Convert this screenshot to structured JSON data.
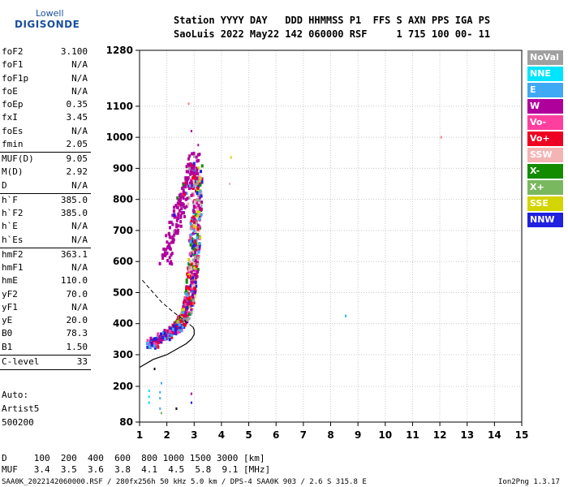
{
  "logo": {
    "top": "Lowell",
    "bottom": "DIGISONDE"
  },
  "header": {
    "line1": "Station YYYY DAY   DDD HHMMSS P1  FFS S AXN PPS IGA PS",
    "line2": "SaoLuis 2022 May22 142 060000 RSF     1 715 100 00- 11"
  },
  "params": [
    {
      "k": "foF2",
      "v": "3.100"
    },
    {
      "k": "foF1",
      "v": "N/A"
    },
    {
      "k": "foF1p",
      "v": "N/A"
    },
    {
      "k": "foE",
      "v": "N/A"
    },
    {
      "k": "foEp",
      "v": "0.35"
    },
    {
      "k": "fxI",
      "v": "3.45"
    },
    {
      "k": "foEs",
      "v": "N/A"
    },
    {
      "k": "fmin",
      "v": "2.05"
    },
    {
      "sep": true
    },
    {
      "k": "MUF(D)",
      "v": "9.05"
    },
    {
      "k": "M(D)",
      "v": "2.92"
    },
    {
      "k": "D",
      "v": "N/A"
    },
    {
      "sep": true
    },
    {
      "k": "h`F",
      "v": "385.0"
    },
    {
      "k": "h`F2",
      "v": "385.0"
    },
    {
      "k": "h`E",
      "v": "N/A"
    },
    {
      "k": "h`Es",
      "v": "N/A"
    },
    {
      "sep": true
    },
    {
      "k": "hmF2",
      "v": "363.1"
    },
    {
      "k": "hmF1",
      "v": "N/A"
    },
    {
      "k": "hmE",
      "v": "110.0"
    },
    {
      "k": "yF2",
      "v": "70.0"
    },
    {
      "k": "yF1",
      "v": "N/A"
    },
    {
      "k": "yE",
      "v": "20.0"
    },
    {
      "k": "B0",
      "v": "78.3"
    },
    {
      "k": "B1",
      "v": "1.50"
    },
    {
      "sep": true
    },
    {
      "k": "C-level",
      "v": "33"
    },
    {
      "sep": true
    }
  ],
  "auto": {
    "line1": "Auto:",
    "line2": "Artist5",
    "line3": "500200"
  },
  "legend": [
    {
      "label": "NoVal",
      "color": "#a0a0a0"
    },
    {
      "label": "NNE",
      "color": "#00e5ff"
    },
    {
      "label": "E",
      "color": "#3fa9f5"
    },
    {
      "label": "W",
      "color": "#b0009c"
    },
    {
      "label": "Vo-",
      "color": "#ff3fa0"
    },
    {
      "label": "Vo+",
      "color": "#ee0022"
    },
    {
      "label": "SSW",
      "color": "#f4b4b4"
    },
    {
      "label": "X-",
      "color": "#138c00"
    },
    {
      "label": "X+",
      "color": "#7ab860"
    },
    {
      "label": "SSE",
      "color": "#d4d400"
    },
    {
      "label": "NNW",
      "color": "#2020e0"
    }
  ],
  "footer": {
    "d_line": "D     100  200  400  600  800 1000 1500 3000 [km]",
    "muf_line": "MUF   3.4  3.5  3.6  3.8  4.1  4.5  5.8  9.1 [MHz]",
    "file_line": "SAA0K_2022142060000.RSF / 280fx256h 50 kHz 5.0 km / DPS-4 SAA0K 903 / 2.6 S 315.8 E",
    "version": "Ion2Png 1.3.17"
  },
  "chart_data": {
    "type": "scatter",
    "xlabel": "",
    "ylabel": "",
    "xlim": [
      1,
      15
    ],
    "ylim": [
      80,
      1280
    ],
    "x_ticks": [
      1,
      2,
      3,
      4,
      5,
      6,
      7,
      8,
      9,
      10,
      11,
      12,
      13,
      14,
      15
    ],
    "y_ticks": [
      80,
      200,
      300,
      400,
      500,
      600,
      700,
      800,
      900,
      1000,
      1100,
      1280
    ],
    "grid": true,
    "trace_bands": [
      {
        "name": "main F2 trace",
        "x": [
          1.4,
          1.8,
          2.2,
          2.45,
          2.65,
          2.8,
          2.9,
          2.98,
          3.05,
          3.1,
          3.12
        ],
        "y": [
          330,
          355,
          375,
          395,
          420,
          460,
          520,
          600,
          700,
          800,
          900
        ]
      },
      {
        "name": "upper W spread",
        "x": [
          1.95,
          2.2,
          2.45,
          2.7,
          2.9,
          3.05
        ],
        "y": [
          600,
          690,
          760,
          820,
          880,
          940
        ]
      }
    ],
    "isolated_points": [
      {
        "x": 8.55,
        "y": 425,
        "color": "#00c8e0"
      },
      {
        "x": 12.05,
        "y": 1000,
        "color": "#ff8080"
      },
      {
        "x": 2.8,
        "y": 1108,
        "color": "#ff8080"
      },
      {
        "x": 2.9,
        "y": 1020,
        "color": "#b0009c"
      },
      {
        "x": 3.15,
        "y": 975,
        "color": "#b0009c"
      },
      {
        "x": 4.35,
        "y": 935,
        "color": "#d4d400"
      },
      {
        "x": 4.3,
        "y": 850,
        "color": "#f4b4b4"
      },
      {
        "x": 1.55,
        "y": 255,
        "color": "#000000"
      },
      {
        "x": 1.8,
        "y": 210,
        "color": "#3fa9f5"
      },
      {
        "x": 1.35,
        "y": 185,
        "color": "#00e5ff"
      },
      {
        "x": 1.35,
        "y": 165,
        "color": "#00e5ff"
      },
      {
        "x": 1.35,
        "y": 145,
        "color": "#00e5ff"
      },
      {
        "x": 1.75,
        "y": 180,
        "color": "#3fa9f5"
      },
      {
        "x": 1.75,
        "y": 160,
        "color": "#3fa9f5"
      },
      {
        "x": 1.75,
        "y": 125,
        "color": "#3fa9f5"
      },
      {
        "x": 1.8,
        "y": 110,
        "color": "#7ab860"
      },
      {
        "x": 2.35,
        "y": 125,
        "color": "#000000"
      },
      {
        "x": 2.9,
        "y": 145,
        "color": "#2020e0"
      },
      {
        "x": 2.9,
        "y": 175,
        "color": "#b0009c"
      }
    ],
    "profile_solid": {
      "x": [
        1.0,
        1.5,
        2.0,
        2.4,
        2.7,
        2.9,
        3.0,
        3.0,
        2.95
      ],
      "y": [
        260,
        285,
        300,
        320,
        335,
        350,
        365,
        380,
        390
      ]
    },
    "profile_dashed": {
      "x": [
        1.1,
        1.4,
        1.8,
        2.2,
        2.5,
        2.8,
        3.0
      ],
      "y": [
        540,
        510,
        470,
        440,
        420,
        400,
        385
      ]
    }
  }
}
